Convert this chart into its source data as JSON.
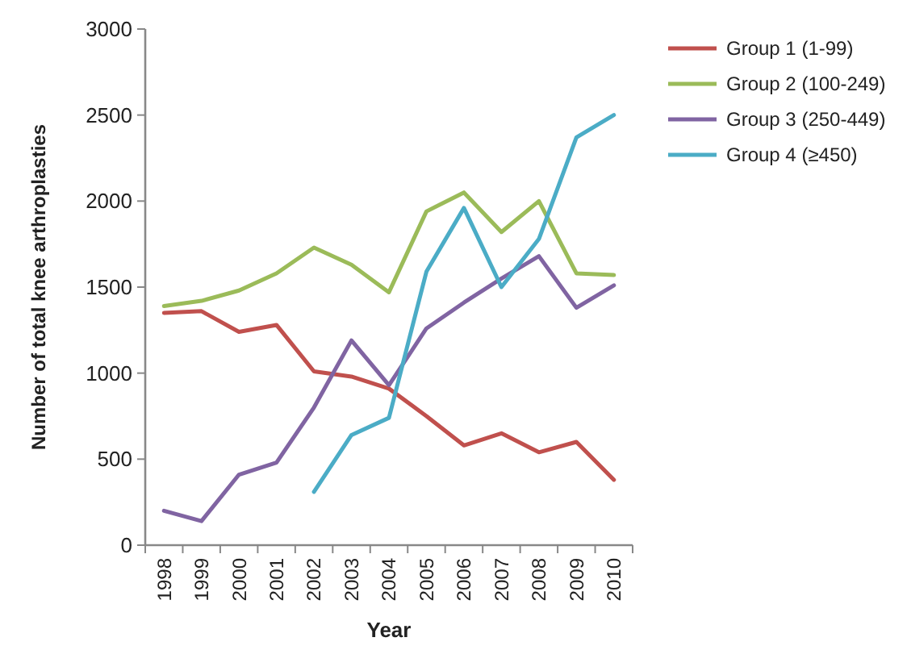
{
  "chart_data": {
    "type": "line",
    "xlabel": "Year",
    "ylabel": "Number of total knee arthroplasties",
    "categories": [
      "1998",
      "1999",
      "2000",
      "2001",
      "2002",
      "2003",
      "2004",
      "2005",
      "2006",
      "2007",
      "2008",
      "2009",
      "2010"
    ],
    "ylim": [
      0,
      3000
    ],
    "yticks": [
      0,
      500,
      1000,
      1500,
      2000,
      2500,
      3000
    ],
    "grid": false,
    "legend": "top right",
    "marker": "none",
    "series": [
      {
        "name": "Group 1 (1-99)",
        "color": "#c0504d",
        "values": [
          1350,
          1360,
          1240,
          1280,
          1010,
          980,
          910,
          750,
          580,
          650,
          540,
          600,
          380
        ]
      },
      {
        "name": "Group 2 (100-249)",
        "color": "#9bbb59",
        "values": [
          1390,
          1420,
          1480,
          1580,
          1730,
          1630,
          1470,
          1940,
          2050,
          1820,
          2000,
          1580,
          1570
        ]
      },
      {
        "name": "Group 3 (250-449)",
        "color": "#8064a2",
        "values": [
          200,
          140,
          410,
          480,
          800,
          1190,
          930,
          1260,
          1410,
          1550,
          1680,
          1380,
          1510
        ]
      },
      {
        "name": "Group 4 (≥450)",
        "color": "#4bacc6",
        "values": [
          null,
          null,
          null,
          null,
          310,
          640,
          740,
          1590,
          1960,
          1500,
          1780,
          2370,
          2500
        ]
      }
    ]
  }
}
